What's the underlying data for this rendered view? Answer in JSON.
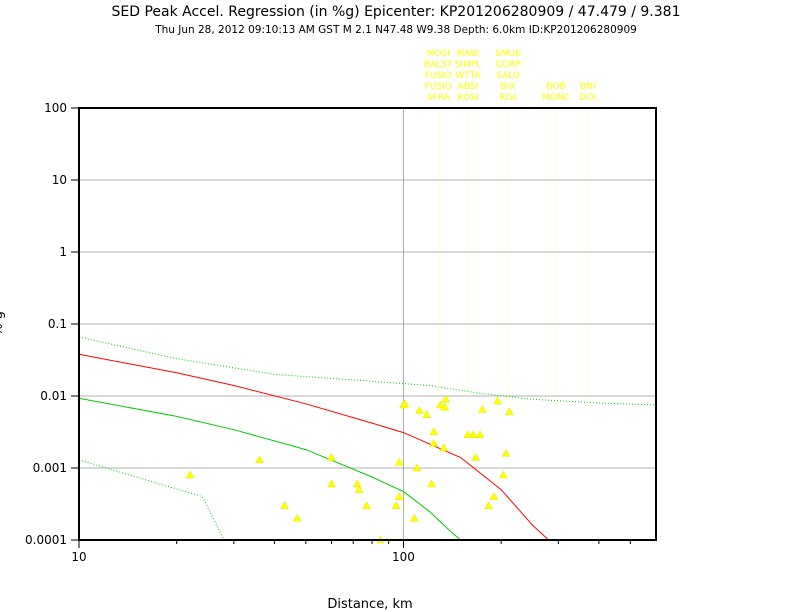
{
  "chart_data": {
    "type": "scatter",
    "title": "SED Peak Accel. Regression (in %g) Epicenter: KP201206280909 / 47.479 / 9.381",
    "subtitle": "Thu Jun 28, 2012 09:10:13 AM GST   M 2.1   N47.48 W9.38   Depth: 6.0km   ID:KP201206280909",
    "xlabel": "Distance, km",
    "ylabel": "% g",
    "x_scale": "log",
    "y_scale": "log",
    "xlim": [
      10,
      600
    ],
    "ylim": [
      0.0001,
      100
    ],
    "grid": true,
    "x_ticks": [
      "10",
      "100"
    ],
    "y_ticks": [
      "100",
      "10",
      "1",
      "0.1",
      "0.01",
      "0.001",
      "0.0001"
    ],
    "series": [
      {
        "type": "scatter",
        "marker": "triangle",
        "color": "#ffff00",
        "points": [
          [
            22,
            0.0008
          ],
          [
            36,
            0.0013
          ],
          [
            43,
            0.0003
          ],
          [
            47,
            0.0002
          ],
          [
            60,
            0.0014
          ],
          [
            60,
            0.0006
          ],
          [
            72,
            0.0006
          ],
          [
            73,
            0.0005
          ],
          [
            77,
            0.0003
          ],
          [
            85,
            0.0001
          ],
          [
            95,
            0.0003
          ],
          [
            97,
            0.0004
          ],
          [
            97,
            0.0012
          ],
          [
            100,
            0.0075
          ],
          [
            101,
            0.0078
          ],
          [
            108,
            0.0002
          ],
          [
            110,
            0.001
          ],
          [
            112,
            0.0063
          ],
          [
            118,
            0.0055
          ],
          [
            122,
            0.0006
          ],
          [
            124,
            0.0032
          ],
          [
            124,
            0.0022
          ],
          [
            130,
            0.0075
          ],
          [
            133,
            0.0019
          ],
          [
            134,
            0.007
          ],
          [
            135,
            0.009
          ],
          [
            158,
            0.0029
          ],
          [
            164,
            0.0029
          ],
          [
            167,
            0.0014
          ],
          [
            172,
            0.0029
          ],
          [
            175,
            0.0065
          ],
          [
            183,
            0.0003
          ],
          [
            190,
            0.0004
          ],
          [
            195,
            0.0085
          ],
          [
            203,
            0.0008
          ],
          [
            207,
            0.0016
          ],
          [
            212,
            0.006
          ]
        ]
      },
      {
        "type": "line",
        "color": "#ff0000",
        "x": [
          10,
          20,
          30,
          50,
          80,
          100,
          150,
          200,
          250,
          280
        ],
        "y": [
          0.038,
          0.021,
          0.014,
          0.0078,
          0.0042,
          0.0031,
          0.0014,
          0.0005,
          0.00016,
          0.0001
        ]
      },
      {
        "type": "line",
        "color": "#00cc00",
        "x": [
          10,
          20,
          30,
          50,
          80,
          100,
          120,
          140,
          150
        ],
        "y": [
          0.0093,
          0.0052,
          0.0034,
          0.0018,
          0.00075,
          0.00047,
          0.00025,
          0.00013,
          0.0001
        ]
      },
      {
        "type": "line",
        "style": "dotted",
        "color": "#00cc00",
        "x": [
          10,
          20,
          40,
          80,
          120,
          170,
          250,
          400,
          600
        ],
        "y": [
          0.066,
          0.033,
          0.02,
          0.016,
          0.014,
          0.011,
          0.009,
          0.008,
          0.0075
        ]
      },
      {
        "type": "line",
        "style": "dotted",
        "color": "#00cc00",
        "x": [
          10,
          24,
          28
        ],
        "y": [
          0.0013,
          0.0004,
          0.0001
        ]
      }
    ],
    "station_labels": [
      {
        "x": 128,
        "label": "MOSI"
      },
      {
        "x": 128,
        "label": "BALST"
      },
      {
        "x": 128,
        "label": "FUSIO"
      },
      {
        "x": 128,
        "label": "FUSIO"
      },
      {
        "x": 128,
        "label": "SFRA"
      },
      {
        "x": 158,
        "label": "MABI"
      },
      {
        "x": 158,
        "label": "SIMPL"
      },
      {
        "x": 158,
        "label": "WTTA"
      },
      {
        "x": 158,
        "label": "ABSI"
      },
      {
        "x": 158,
        "label": "ROSI"
      },
      {
        "x": 210,
        "label": "SMUK"
      },
      {
        "x": 210,
        "label": "GGRP"
      },
      {
        "x": 210,
        "label": "SALO"
      },
      {
        "x": 210,
        "label": "BIX"
      },
      {
        "x": 210,
        "label": "RISI"
      },
      {
        "x": 295,
        "label": "BOB"
      },
      {
        "x": 295,
        "label": "MONC"
      },
      {
        "x": 370,
        "label": "BNI"
      },
      {
        "x": 370,
        "label": "DOI"
      }
    ]
  }
}
